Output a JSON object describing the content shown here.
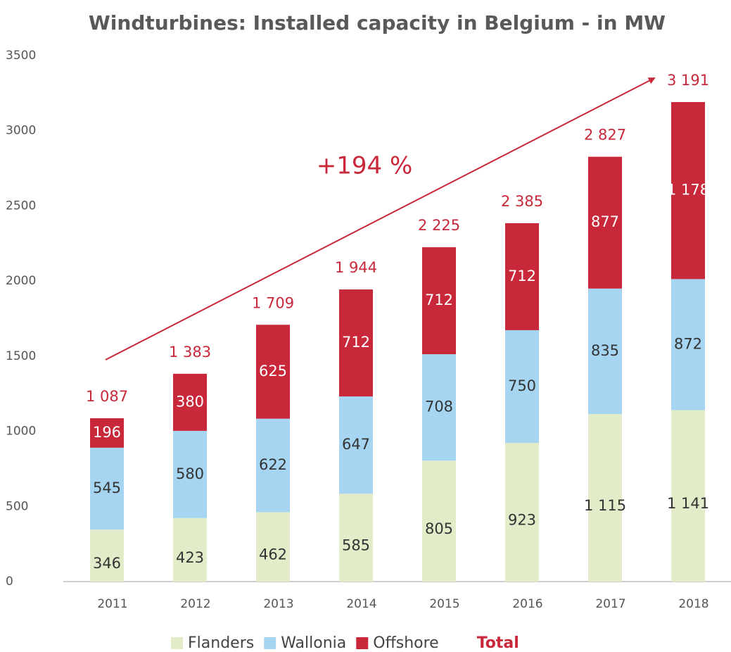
{
  "chart_data": {
    "type": "stacked_bar",
    "title": "Windturbines: Installed capacity in Belgium - in MW",
    "annotation": "+194 %",
    "categories": [
      "2011",
      "2012",
      "2013",
      "2014",
      "2015",
      "2016",
      "2017",
      "2018"
    ],
    "series": [
      {
        "name": "Flanders",
        "color": "#e2ecc9",
        "label_color": "#333333",
        "values": [
          346,
          423,
          462,
          585,
          805,
          923,
          1115,
          1141
        ],
        "value_labels": [
          "346",
          "423",
          "462",
          "585",
          "805",
          "923",
          "1 115",
          "1 141"
        ]
      },
      {
        "name": "Wallonia",
        "color": "#a6d5f2",
        "label_color": "#333333",
        "values": [
          545,
          580,
          622,
          647,
          708,
          750,
          835,
          872
        ]
      },
      {
        "name": "Offshore",
        "color": "#c8283a",
        "label_color": "#ffffff",
        "values": [
          196,
          380,
          625,
          712,
          712,
          712,
          877,
          1178
        ],
        "value_labels": [
          "196",
          "380",
          "625",
          "712",
          "712",
          "712",
          "877",
          "1 178"
        ]
      }
    ],
    "totals": {
      "name": "Total",
      "color": "#c8283a",
      "values": [
        1087,
        1383,
        1709,
        1944,
        2225,
        2385,
        2827,
        3191
      ],
      "value_labels": [
        "1 087",
        "1 383",
        "1 709",
        "1 944",
        "2 225",
        "2 385",
        "2 827",
        "3 191"
      ]
    },
    "ylim": [
      0,
      3500
    ],
    "yticks": [
      0,
      500,
      1000,
      1500,
      2000,
      2500,
      3000,
      3500
    ],
    "grid": false
  }
}
